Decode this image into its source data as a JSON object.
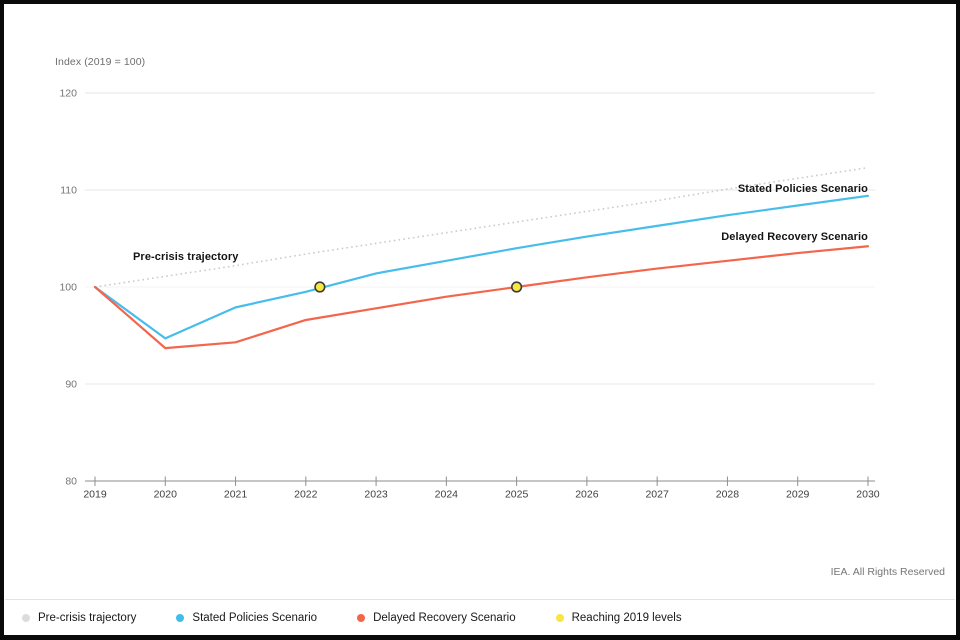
{
  "page": {
    "copyright": "IEA. All Rights Reserved"
  },
  "chart_data": {
    "type": "line",
    "title": "Index (2019 = 100)",
    "x": [
      2019,
      2020,
      2021,
      2022,
      2023,
      2024,
      2025,
      2026,
      2027,
      2028,
      2029,
      2030
    ],
    "ylim": [
      80,
      120
    ],
    "yticks": [
      80,
      90,
      100,
      110,
      120
    ],
    "grid": "horizontal",
    "legend_position": "bottom",
    "series": [
      {
        "name": "Pre-crisis trajectory",
        "color": "#cbcbcb",
        "style": "dotted",
        "width": 1.6,
        "values": [
          100,
          101.1,
          102.2,
          103.4,
          104.5,
          105.6,
          106.7,
          107.8,
          108.9,
          110.1,
          111.2,
          112.3
        ]
      },
      {
        "name": "Stated Policies Scenario",
        "color": "#47bdec",
        "style": "solid",
        "width": 2.2,
        "values": [
          100,
          94.7,
          97.9,
          99.5,
          101.4,
          102.7,
          104.0,
          105.2,
          106.3,
          107.4,
          108.4,
          109.4
        ]
      },
      {
        "name": "Delayed Recovery Scenario",
        "color": "#f3664b",
        "style": "solid",
        "width": 2.2,
        "values": [
          100,
          93.7,
          94.3,
          96.6,
          97.8,
          99.0,
          100.0,
          101.0,
          101.9,
          102.7,
          103.5,
          104.2
        ]
      }
    ],
    "markers": {
      "name": "Reaching 2019 levels",
      "color": "#f6e840",
      "stroke": "#3a3a3a",
      "points": [
        {
          "x": 2022.2,
          "y": 100
        },
        {
          "x": 2025,
          "y": 100
        }
      ]
    },
    "annotations": [
      {
        "text": "Pre-crisis trajectory"
      },
      {
        "text": "Stated Policies Scenario"
      },
      {
        "text": "Delayed Recovery Scenario"
      }
    ]
  },
  "legend": {
    "items": [
      {
        "label": "Pre-crisis trajectory",
        "color": "#dcdcdc"
      },
      {
        "label": "Stated Policies Scenario",
        "color": "#41bde9"
      },
      {
        "label": "Delayed Recovery Scenario",
        "color": "#f2664a"
      },
      {
        "label": "Reaching 2019 levels",
        "color": "#f6e743"
      }
    ]
  }
}
